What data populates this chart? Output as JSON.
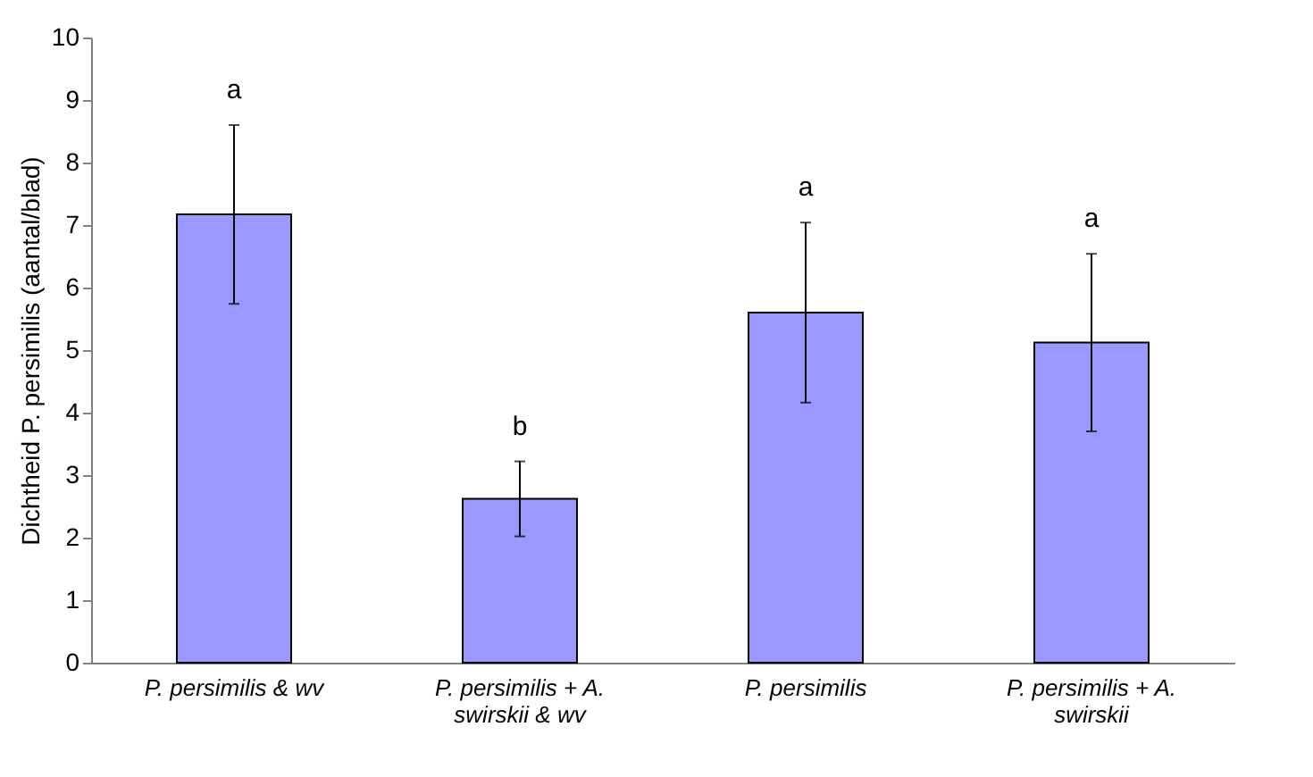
{
  "chart_data": {
    "type": "bar",
    "ylabel": "Dichtheid P. persimilis (aantal/blad)",
    "categories": [
      "P. persimilis & wv",
      "P. persimilis + A. swirskii & wv",
      "P. persimilis",
      "P. persimilis + A. swirskii"
    ],
    "values": [
      7.17,
      2.62,
      5.6,
      5.12
    ],
    "errors": [
      1.43,
      0.6,
      1.44,
      1.42
    ],
    "color": "#9999ff",
    "ylim": [
      0,
      10
    ],
    "yticks": [
      0,
      1,
      2,
      3,
      4,
      5,
      6,
      7,
      8,
      9,
      10
    ],
    "grid": false,
    "annotations": [
      "a",
      "b",
      "a",
      "a"
    ]
  }
}
